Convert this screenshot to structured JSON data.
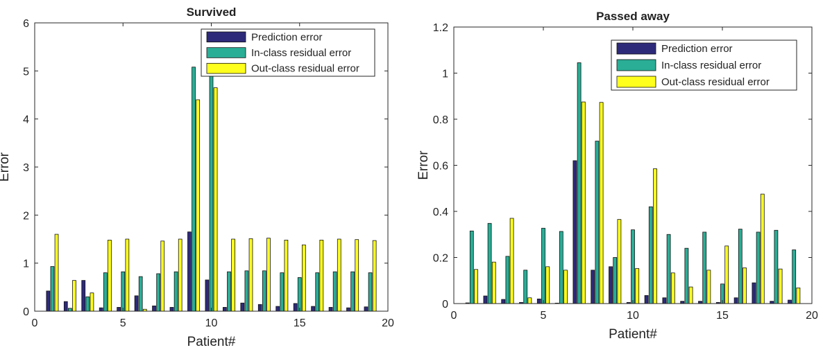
{
  "chart_data": [
    {
      "type": "bar",
      "title": "Survived",
      "xlabel": "Patient#",
      "ylabel": "Error",
      "xlim": [
        0,
        20
      ],
      "ylim": [
        0,
        6
      ],
      "xticks": [
        0,
        5,
        10,
        15,
        20
      ],
      "yticks": [
        0,
        1,
        2,
        3,
        4,
        5,
        6
      ],
      "legend_position": "top-right",
      "categories": [
        1,
        2,
        3,
        4,
        5,
        6,
        7,
        8,
        9,
        10,
        11,
        12,
        13,
        14,
        15,
        16,
        17,
        18,
        19
      ],
      "series": [
        {
          "name": "Prediction error",
          "color": "#2e2a7a",
          "values": [
            0.42,
            0.2,
            0.64,
            0.07,
            0.08,
            0.32,
            0.11,
            0.08,
            1.65,
            0.65,
            0.08,
            0.17,
            0.14,
            0.1,
            0.16,
            0.1,
            0.08,
            0.07,
            0.09
          ]
        },
        {
          "name": "In-class residual error",
          "color": "#2aae96",
          "values": [
            0.93,
            0.06,
            0.3,
            0.8,
            0.82,
            0.72,
            0.78,
            0.82,
            5.08,
            5.0,
            0.82,
            0.84,
            0.84,
            0.8,
            0.7,
            0.8,
            0.82,
            0.82,
            0.8
          ]
        },
        {
          "name": "Out-class residual error",
          "color": "#ffff1e",
          "values": [
            1.6,
            0.64,
            0.38,
            1.48,
            1.5,
            0.04,
            1.46,
            1.5,
            4.4,
            4.65,
            1.5,
            1.51,
            1.52,
            1.48,
            1.38,
            1.48,
            1.5,
            1.49,
            1.47
          ]
        }
      ]
    },
    {
      "type": "bar",
      "title": "Passed away",
      "xlabel": "Patient#",
      "ylabel": "Error",
      "xlim": [
        0,
        20
      ],
      "ylim": [
        0,
        1.2
      ],
      "xticks": [
        0,
        5,
        10,
        15,
        20
      ],
      "yticks": [
        "0",
        "0.2",
        "0.4",
        "0.6",
        "0.8",
        "1",
        "1.2"
      ],
      "legend_position": "top-right",
      "categories": [
        1,
        2,
        3,
        4,
        5,
        6,
        7,
        8,
        9,
        10,
        11,
        12,
        13,
        14,
        15,
        16,
        17,
        18,
        19
      ],
      "series": [
        {
          "name": "Prediction error",
          "color": "#2e2a7a",
          "values": [
            0.003,
            0.033,
            0.018,
            0.005,
            0.02,
            0.002,
            0.62,
            0.145,
            0.16,
            0.005,
            0.035,
            0.025,
            0.01,
            0.01,
            0.005,
            0.025,
            0.09,
            0.01,
            0.015
          ]
        },
        {
          "name": "In-class residual error",
          "color": "#2aae96",
          "values": [
            0.315,
            0.348,
            0.205,
            0.145,
            0.327,
            0.313,
            1.045,
            0.705,
            0.2,
            0.32,
            0.42,
            0.3,
            0.24,
            0.31,
            0.085,
            0.323,
            0.31,
            0.318,
            0.233
          ]
        },
        {
          "name": "Out-class residual error",
          "color": "#ffff1e",
          "values": [
            0.148,
            0.18,
            0.37,
            0.025,
            0.16,
            0.145,
            0.875,
            0.873,
            0.365,
            0.152,
            0.585,
            0.133,
            0.072,
            0.145,
            0.25,
            0.155,
            0.475,
            0.15,
            0.068
          ]
        }
      ]
    }
  ]
}
